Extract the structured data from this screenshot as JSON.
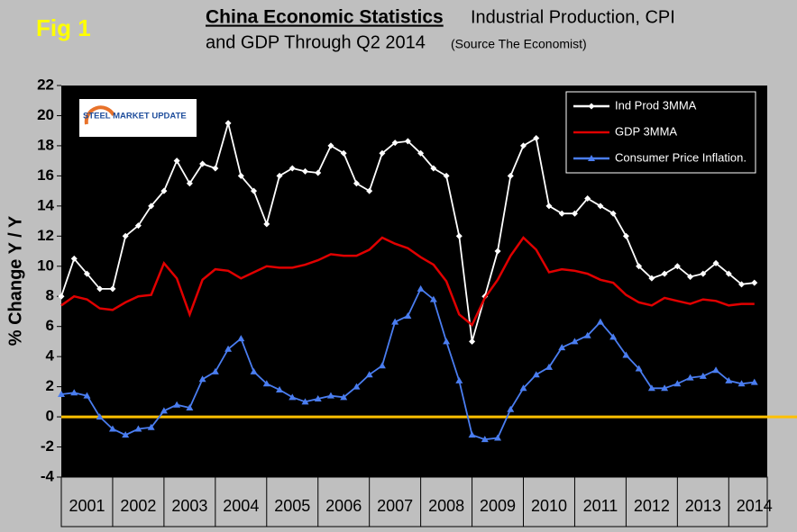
{
  "chart_data": {
    "type": "line",
    "fig_label": "Fig 1",
    "title": "China Economic Statistics",
    "subtitle_line1": "Industrial Production, CPI",
    "subtitle_line2": "and GDP Through Q2 2014",
    "source": "(Source The Economist)",
    "logo_text": "STEEL MARKET UPDATE",
    "y_label": "% Change Y / Y",
    "x": [
      2001,
      2001.25,
      2001.5,
      2001.75,
      2002,
      2002.25,
      2002.5,
      2002.75,
      2003,
      2003.25,
      2003.5,
      2003.75,
      2004,
      2004.25,
      2004.5,
      2004.75,
      2005,
      2005.25,
      2005.5,
      2005.75,
      2006,
      2006.25,
      2006.5,
      2006.75,
      2007,
      2007.25,
      2007.5,
      2007.75,
      2008,
      2008.25,
      2008.5,
      2008.75,
      2009,
      2009.25,
      2009.5,
      2009.75,
      2010,
      2010.25,
      2010.5,
      2010.75,
      2011,
      2011.25,
      2011.5,
      2011.75,
      2012,
      2012.25,
      2012.5,
      2012.75,
      2013,
      2013.25,
      2013.5,
      2013.75,
      2014,
      2014.25,
      2014.5
    ],
    "series": [
      {
        "name": "Ind Prod 3MMA",
        "color": "#ffffff",
        "marker": "diamond",
        "values": [
          8,
          10.5,
          9.5,
          8.5,
          8.5,
          12,
          12.7,
          14,
          15,
          17,
          15.5,
          16.8,
          16.5,
          19.5,
          16,
          15,
          12.8,
          16,
          16.5,
          16.3,
          16.2,
          18,
          17.5,
          15.5,
          15,
          17.5,
          18.2,
          18.3,
          17.5,
          16.5,
          16,
          12,
          5,
          8,
          11,
          16,
          18,
          18.5,
          14,
          13.5,
          13.5,
          14.5,
          14,
          13.5,
          12,
          10,
          9.2,
          9.5,
          10,
          9.3,
          9.5,
          10.2,
          9.5,
          8.8,
          8.9
        ]
      },
      {
        "name": "GDP 3MMA",
        "color": "#e00000",
        "marker": "none",
        "values": [
          7.4,
          8.0,
          7.8,
          7.2,
          7.1,
          7.6,
          8.0,
          8.1,
          10.2,
          9.2,
          6.8,
          9.1,
          9.8,
          9.7,
          9.2,
          9.6,
          10,
          9.9,
          9.9,
          10.1,
          10.4,
          10.8,
          10.7,
          10.7,
          11.1,
          11.9,
          11.5,
          11.2,
          10.6,
          10.1,
          9.0,
          6.8,
          6.1,
          7.9,
          9.1,
          10.7,
          11.9,
          11.1,
          9.6,
          9.8,
          9.7,
          9.5,
          9.1,
          8.9,
          8.1,
          7.6,
          7.4,
          7.9,
          7.7,
          7.5,
          7.8,
          7.7,
          7.4,
          7.5,
          7.5
        ]
      },
      {
        "name": "Consumer Price Inflation.",
        "color": "#4a7df0",
        "marker": "triangle",
        "values": [
          1.5,
          1.6,
          1.4,
          0,
          -0.8,
          -1.2,
          -0.8,
          -0.7,
          0.4,
          0.8,
          0.6,
          2.5,
          3.0,
          4.5,
          5.2,
          3.0,
          2.2,
          1.8,
          1.3,
          1.0,
          1.2,
          1.4,
          1.3,
          2.0,
          2.8,
          3.4,
          6.3,
          6.7,
          8.5,
          7.8,
          5.0,
          2.4,
          -1.2,
          -1.5,
          -1.4,
          0.5,
          1.9,
          2.8,
          3.3,
          4.6,
          5.0,
          5.4,
          6.3,
          5.3,
          4.1,
          3.2,
          1.9,
          1.9,
          2.2,
          2.6,
          2.7,
          3.1,
          2.4,
          2.2,
          2.3
        ]
      }
    ],
    "xlim": [
      2001,
      2014.75
    ],
    "xticks": [
      {
        "value": 2001.5,
        "label": "2001"
      },
      {
        "value": 2002.5,
        "label": "2002"
      },
      {
        "value": 2003.5,
        "label": "2003"
      },
      {
        "value": 2004.5,
        "label": "2004"
      },
      {
        "value": 2005.5,
        "label": "2005"
      },
      {
        "value": 2006.5,
        "label": "2006"
      },
      {
        "value": 2007.5,
        "label": "2007"
      },
      {
        "value": 2008.5,
        "label": "2008"
      },
      {
        "value": 2009.5,
        "label": "2009"
      },
      {
        "value": 2010.5,
        "label": "2010"
      },
      {
        "value": 2011.5,
        "label": "2011"
      },
      {
        "value": 2012.5,
        "label": "2012"
      },
      {
        "value": 2013.5,
        "label": "2013"
      },
      {
        "value": 2014.5,
        "label": "2014"
      }
    ],
    "ylim": [
      -4,
      22
    ],
    "yticks": [
      -4,
      -2,
      0,
      2,
      4,
      6,
      8,
      10,
      12,
      14,
      16,
      18,
      20,
      22
    ],
    "hline": {
      "value": 0,
      "color": "#ffc000"
    },
    "legend": "top-right",
    "grid": false
  }
}
